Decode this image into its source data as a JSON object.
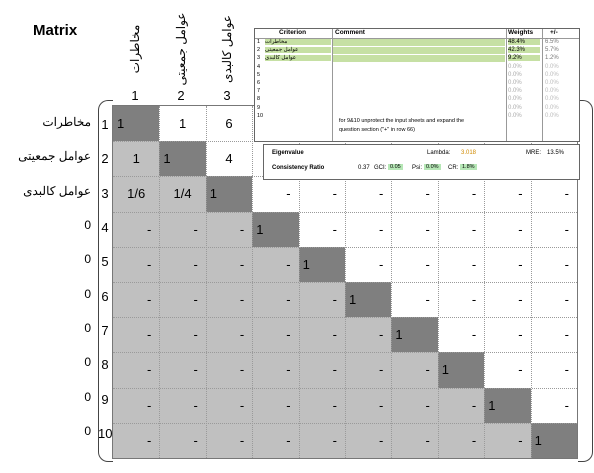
{
  "title": "Matrix",
  "columns": [
    {
      "label": "مخاطرات",
      "num": "1"
    },
    {
      "label": "عوامل جمعیتی",
      "num": "2"
    },
    {
      "label": "عوامل کالبدی",
      "num": "3"
    }
  ],
  "rows": [
    {
      "label": "مخاطرات",
      "num": "1"
    },
    {
      "label": "عوامل جمعیتی",
      "num": "2"
    },
    {
      "label": "عوامل کالبدی",
      "num": "3"
    },
    {
      "label": "0",
      "num": "4"
    },
    {
      "label": "0",
      "num": "5"
    },
    {
      "label": "0",
      "num": "6"
    },
    {
      "label": "0",
      "num": "7"
    },
    {
      "label": "0",
      "num": "8"
    },
    {
      "label": "0",
      "num": "9"
    },
    {
      "label": "0",
      "num": "10"
    }
  ],
  "matrix": [
    [
      "1",
      "1",
      "6",
      "",
      "",
      "",
      "",
      "",
      "",
      ""
    ],
    [
      "1",
      "1",
      "4",
      "",
      "",
      "",
      "",
      "",
      "",
      ""
    ],
    [
      "1/6",
      "1/4",
      "1",
      "-",
      "-",
      "-",
      "-",
      "-",
      "-",
      "-"
    ],
    [
      "-",
      "-",
      "-",
      "1",
      "-",
      "-",
      "-",
      "-",
      "-",
      "-"
    ],
    [
      "-",
      "-",
      "-",
      "-",
      "1",
      "-",
      "-",
      "-",
      "-",
      "-"
    ],
    [
      "-",
      "-",
      "-",
      "-",
      "-",
      "1",
      "-",
      "-",
      "-",
      "-"
    ],
    [
      "-",
      "-",
      "-",
      "-",
      "-",
      "-",
      "1",
      "-",
      "-",
      "-"
    ],
    [
      "-",
      "-",
      "-",
      "-",
      "-",
      "-",
      "-",
      "1",
      "-",
      "-"
    ],
    [
      "-",
      "-",
      "-",
      "-",
      "-",
      "-",
      "-",
      "-",
      "1",
      "-"
    ],
    [
      "-",
      "-",
      "-",
      "-",
      "-",
      "-",
      "-",
      "-",
      "-",
      "1"
    ]
  ],
  "panel": {
    "criterion_header": "Criterion",
    "comment_header": "Comment",
    "weights_header": "Weights",
    "pm_header": "+/-",
    "criteria": [
      {
        "num": "1",
        "name": "مخاطرات",
        "weight": "48.4%",
        "pm": "6.5%"
      },
      {
        "num": "2",
        "name": "عوامل جمعیتی",
        "weight": "42.3%",
        "pm": "5.7%"
      },
      {
        "num": "3",
        "name": "عوامل کالبدی",
        "weight": "9.2%",
        "pm": "1.2%"
      },
      {
        "num": "4",
        "name": "",
        "weight": "0.0%",
        "pm": "0.0%"
      },
      {
        "num": "5",
        "name": "",
        "weight": "0.0%",
        "pm": "0.0%"
      },
      {
        "num": "6",
        "name": "",
        "weight": "0.0%",
        "pm": "0.0%"
      },
      {
        "num": "7",
        "name": "",
        "weight": "0.0%",
        "pm": "0.0%"
      },
      {
        "num": "8",
        "name": "",
        "weight": "0.0%",
        "pm": "0.0%"
      },
      {
        "num": "9",
        "name": "",
        "weight": "0.0%",
        "pm": "0.0%"
      },
      {
        "num": "10",
        "name": "",
        "weight": "0.0%",
        "pm": "0.0%"
      }
    ],
    "note_line1": "for 9&10 unprotect the input sheets and expand the",
    "note_line2": "question section (\"+\" in row 66)"
  },
  "eigen": {
    "label": "Eigenvalue",
    "lambda_label": "Lambda:",
    "lambda_value": "3.018",
    "mre_label": "MRE:",
    "mre_value": "13.5%",
    "cr_label": "Consistency Ratio",
    "cr_value": "0.37",
    "gci_label": "GCI:",
    "gci_value": "0.05",
    "psi_label": "Psi:",
    "psi_value": "0.0%",
    "cr2_label": "CR:",
    "cr2_value": "1.8%"
  },
  "colors": {
    "grey": "#c0c0c0",
    "diag": "#7f7f7f",
    "weight_green": "#c6e0a4",
    "badge_green": "#b6e7b6"
  }
}
